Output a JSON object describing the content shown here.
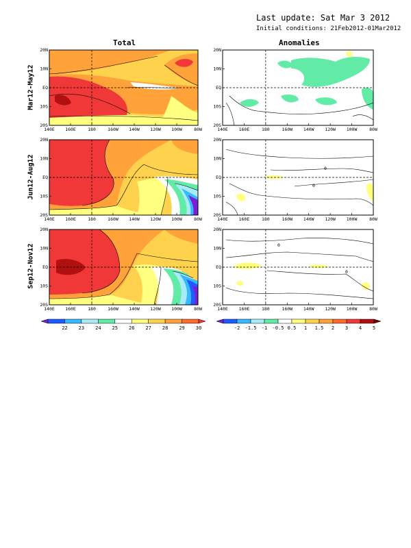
{
  "header": {
    "update": "Last update: Sat Mar  3 2012",
    "initial": "Initial conditions: 21Feb2012-01Mar2012"
  },
  "columns": {
    "left": "Total",
    "right": "Anomalies"
  },
  "rows": [
    "Mar12-May12",
    "Jun12-Aug12",
    "Sep12-Nov12"
  ],
  "axes": {
    "x_ticks": [
      "140E",
      "160E",
      "180",
      "160W",
      "140W",
      "120W",
      "100W",
      "80W"
    ],
    "y_ticks": [
      "20N",
      "10N",
      "EQ",
      "10S",
      "20S"
    ]
  },
  "contour_labels": {
    "anom_row2": [
      "0",
      "0"
    ],
    "anom_row3": [
      "0",
      "0"
    ]
  },
  "colorbars": {
    "total": {
      "labels": [
        "22",
        "23",
        "24",
        "25",
        "26",
        "27",
        "28",
        "29",
        "30"
      ],
      "colors": [
        "#7a1fd6",
        "#1f5cff",
        "#38b8ff",
        "#a8ecf8",
        "#62eba6",
        "#ffffff",
        "#ffff80",
        "#ffd24d",
        "#ffa23a",
        "#ff6a30",
        "#f03838"
      ]
    },
    "anom": {
      "labels": [
        "-2",
        "-1.5",
        "-1",
        "-0.5",
        "0.5",
        "1",
        "1.5",
        "2",
        "3",
        "4",
        "5"
      ],
      "colors": [
        "#7a1fd6",
        "#1f5cff",
        "#38b8ff",
        "#a8ecf8",
        "#62eba6",
        "#ffffff",
        "#ffff80",
        "#ffd24d",
        "#ffa23a",
        "#ff6a30",
        "#f03838",
        "#b01010",
        "#700000"
      ]
    }
  }
}
